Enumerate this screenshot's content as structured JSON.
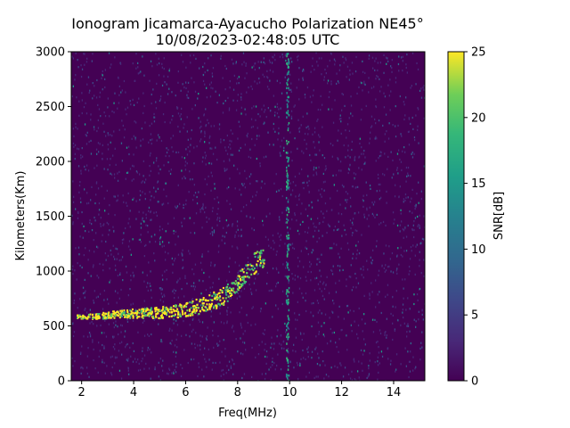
{
  "chart_data": {
    "type": "heatmap",
    "title": "Ionogram Jicamarca-Ayacucho Polarization NE45°",
    "subtitle": "10/08/2023-02:48:05 UTC",
    "xlabel": "Freq(MHz)",
    "ylabel": "Kilometers(Km)",
    "xlim": [
      1.6,
      15.2
    ],
    "ylim": [
      0,
      3000
    ],
    "x_ticks": [
      2,
      4,
      6,
      8,
      10,
      12,
      14
    ],
    "y_ticks": [
      0,
      500,
      1000,
      1500,
      2000,
      2500,
      3000
    ],
    "colorbar": {
      "label": "SNR[dB]",
      "range": [
        0,
        25
      ],
      "ticks": [
        0,
        5,
        10,
        15,
        20,
        25
      ],
      "colormap": "viridis"
    },
    "traces": [
      {
        "x": [
          1.8,
          2.5,
          3.0,
          3.5,
          4.0,
          4.5,
          5.0,
          5.5,
          6.0,
          6.5,
          7.0,
          7.5,
          8.0,
          8.5,
          9.0
        ],
        "y": [
          590,
          595,
          605,
          615,
          620,
          625,
          630,
          640,
          660,
          690,
          730,
          790,
          900,
          1050,
          1150
        ]
      }
    ],
    "grid": false,
    "colors": {
      "background": "#440154",
      "strong": "#fde725",
      "medium": "#5ec962",
      "weak": "#3b528b"
    }
  }
}
